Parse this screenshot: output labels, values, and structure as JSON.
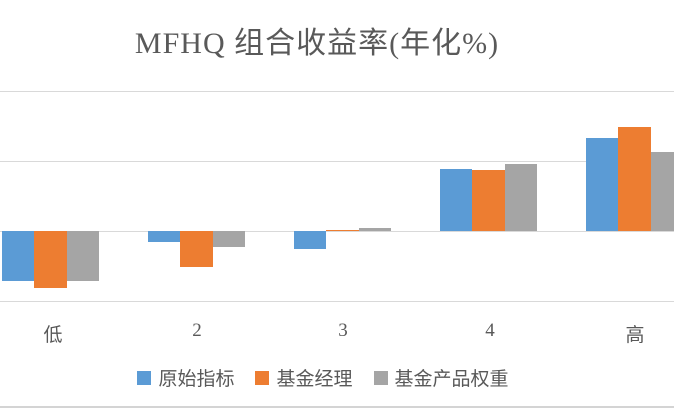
{
  "chart_data": {
    "type": "bar",
    "title": "MFHQ 组合收益率(年化%)",
    "categories": [
      "低",
      "2",
      "3",
      "4",
      "高"
    ],
    "series": [
      {
        "name": "原始指标",
        "color": "#5B9BD5",
        "values": [
          -0.71,
          -0.15,
          -0.25,
          0.89,
          1.33
        ]
      },
      {
        "name": "基金经理",
        "color": "#ED7D31",
        "values": [
          -0.82,
          -0.51,
          0.02,
          0.87,
          1.48
        ]
      },
      {
        "name": "基金产品权重",
        "color": "#A5A5A5",
        "values": [
          -0.71,
          -0.23,
          0.05,
          0.96,
          1.13
        ]
      }
    ],
    "value_unit": "gridline-intervals (y-axis tick labels cropped out of view)",
    "ylim": [
      -1,
      2
    ],
    "gridline_values": [
      -1,
      0,
      1,
      2
    ],
    "grid": "horizontal",
    "legend_position": "bottom",
    "xlabel": "",
    "ylabel": "",
    "note": "Chart is cropped at left/right edges; last gray bar runs off the right edge"
  },
  "colors": {
    "text": "#595959",
    "gridline": "#D9D9D9",
    "background": "#FFFFFF",
    "divider": "#D4D4D4"
  }
}
